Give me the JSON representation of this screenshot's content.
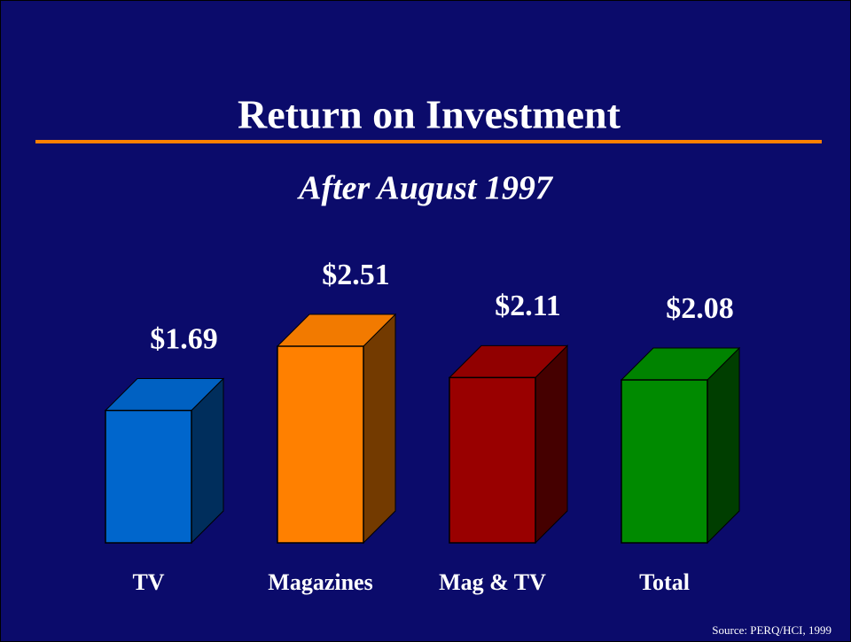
{
  "chart_data": {
    "type": "bar",
    "title": "Return on Investment",
    "subtitle": "After August 1997",
    "categories": [
      "TV",
      "Magazines",
      "Mag & TV",
      "Total"
    ],
    "values": [
      1.69,
      2.51,
      2.11,
      2.08
    ],
    "value_labels": [
      "$1.69",
      "$2.51",
      "$2.11",
      "$2.08"
    ],
    "colors": [
      "#0066cc",
      "#ff8000",
      "#990000",
      "#008a00"
    ],
    "source": "Source: PERQ/HCI, 1999"
  }
}
